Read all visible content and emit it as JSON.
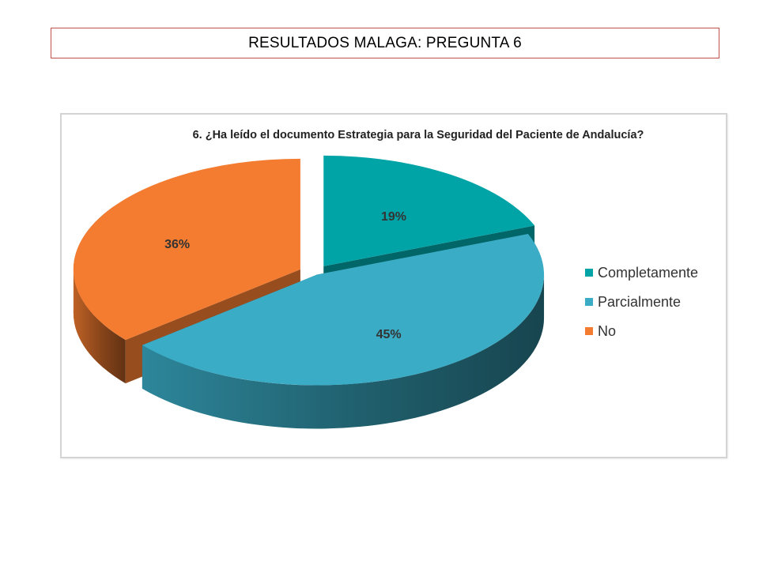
{
  "slide_title": "RESULTADOS MALAGA: PREGUNTA 6",
  "chart_data": {
    "type": "pie",
    "title": "6. ¿Ha leído el documento Estrategia para la Seguridad del Paciente de Andalucía?",
    "categories": [
      "Completamente",
      "Parcialmente",
      "No"
    ],
    "values": [
      19,
      45,
      36
    ],
    "unit": "%",
    "data_labels": [
      "19%",
      "45%",
      "36%"
    ],
    "colors": [
      "#00a4a6",
      "#3aacc6",
      "#f47c30"
    ],
    "exploded": true,
    "style": "3d",
    "legend_position": "right"
  }
}
